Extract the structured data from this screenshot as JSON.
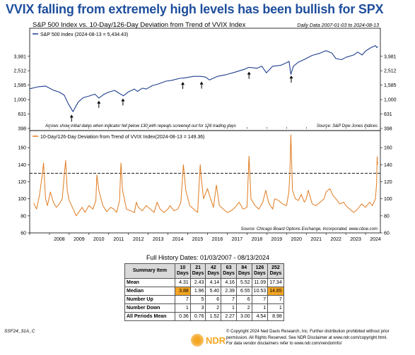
{
  "headline": "VVIX falling from extremely high levels has been bullish for SPX",
  "chart_data": [
    {
      "type": "line",
      "title": "S&P 500 Index vs. 10-Day/126-Day Deviation from Trend of VVIX Index",
      "subtitle": "Daily Data 2007-01-03 to 2024-08-13",
      "scale": "log",
      "ylim": [
        398,
        6500
      ],
      "yticks": [
        398,
        631,
        1000,
        1585,
        2512,
        3981
      ],
      "ytick_labels": [
        "398",
        "631",
        "1,000",
        "1,585",
        "2,512",
        "3,981"
      ],
      "series": [
        {
          "name": "S&P 500 Index (2024-08-13 = 5,434.43)",
          "color": "#1f3f8f",
          "x": [
            2007.0,
            2007.4,
            2007.8,
            2008.2,
            2008.5,
            2008.75,
            2008.95,
            2009.19,
            2009.45,
            2009.7,
            2010.0,
            2010.3,
            2010.5,
            2010.75,
            2011.0,
            2011.3,
            2011.6,
            2011.75,
            2012.0,
            2012.3,
            2012.45,
            2012.7,
            2012.9,
            2013.2,
            2013.5,
            2013.9,
            2014.2,
            2014.6,
            2014.85,
            2015.3,
            2015.65,
            2015.9,
            2016.1,
            2016.5,
            2016.9,
            2017.4,
            2017.9,
            2018.1,
            2018.5,
            2018.75,
            2018.98,
            2019.3,
            2019.7,
            2020.0,
            2020.13,
            2020.22,
            2020.35,
            2020.6,
            2020.9,
            2021.3,
            2021.7,
            2021.99,
            2022.3,
            2022.5,
            2022.78,
            2023.0,
            2023.4,
            2023.6,
            2023.83,
            2024.0,
            2024.25,
            2024.5,
            2024.58,
            2024.61
          ],
          "values": [
            1410,
            1500,
            1540,
            1350,
            1270,
            1150,
            880,
            680,
            920,
            1060,
            1120,
            1190,
            1050,
            1180,
            1270,
            1340,
            1190,
            1130,
            1280,
            1400,
            1300,
            1440,
            1400,
            1560,
            1640,
            1800,
            1850,
            1970,
            2000,
            2100,
            2100,
            2050,
            1870,
            2100,
            2200,
            2400,
            2650,
            2800,
            2720,
            2900,
            2350,
            2900,
            2980,
            3240,
            3380,
            2240,
            2900,
            3300,
            3600,
            4100,
            4400,
            4770,
            4400,
            3700,
            3580,
            3850,
            4150,
            4550,
            4150,
            4700,
            5200,
            5600,
            5250,
            5434
          ]
        }
      ],
      "annotations": [
        {
          "x": 2009.12,
          "y": 660
        },
        {
          "x": 2010.5,
          "y": 1030
        },
        {
          "x": 2011.72,
          "y": 1110
        },
        {
          "x": 2014.75,
          "y": 1880
        },
        {
          "x": 2015.7,
          "y": 1900
        },
        {
          "x": 2018.1,
          "y": 2600
        },
        {
          "x": 2020.24,
          "y": 2300
        }
      ],
      "note": "Arrows show initial dates when indicator fell below 130 with repeats screened out for 126 trading days",
      "source": "Source:  S&P Dow Jones Indices"
    },
    {
      "type": "line",
      "ylim": [
        60,
        180
      ],
      "yticks": [
        60,
        80,
        100,
        120,
        140,
        160
      ],
      "threshold": 130,
      "series": [
        {
          "name": "10-Day/126-Day Deviation from Trend of VVIX Index(2024-08-13 = 149.36)",
          "color": "#e07b1f",
          "x": [
            2007.2,
            2007.35,
            2007.5,
            2007.62,
            2007.7,
            2007.8,
            2007.9,
            2008.05,
            2008.2,
            2008.35,
            2008.5,
            2008.65,
            2008.75,
            2008.82,
            2008.9,
            2009.0,
            2009.2,
            2009.35,
            2009.5,
            2009.65,
            2009.8,
            2010.0,
            2010.2,
            2010.35,
            2010.4,
            2010.5,
            2010.7,
            2010.9,
            2011.1,
            2011.25,
            2011.4,
            2011.55,
            2011.62,
            2011.7,
            2011.9,
            2012.1,
            2012.3,
            2012.4,
            2012.5,
            2012.7,
            2012.9,
            2013.1,
            2013.3,
            2013.45,
            2013.6,
            2013.8,
            2014.0,
            2014.1,
            2014.3,
            2014.5,
            2014.65,
            2014.78,
            2014.9,
            2015.1,
            2015.3,
            2015.5,
            2015.63,
            2015.68,
            2015.8,
            2016.0,
            2016.1,
            2016.3,
            2016.45,
            2016.6,
            2016.8,
            2017.0,
            2017.2,
            2017.4,
            2017.6,
            2017.8,
            2018.0,
            2018.05,
            2018.1,
            2018.2,
            2018.4,
            2018.6,
            2018.8,
            2018.95,
            2019.1,
            2019.3,
            2019.4,
            2019.6,
            2019.8,
            2020.0,
            2020.12,
            2020.17,
            2020.22,
            2020.3,
            2020.45,
            2020.6,
            2020.75,
            2020.9,
            2021.0,
            2021.1,
            2021.3,
            2021.5,
            2021.7,
            2021.9,
            2022.0,
            2022.2,
            2022.35,
            2022.5,
            2022.7,
            2022.9,
            2023.0,
            2023.2,
            2023.4,
            2023.6,
            2023.8,
            2024.0,
            2024.2,
            2024.35,
            2024.5,
            2024.56,
            2024.59,
            2024.61
          ],
          "values": [
            95,
            88,
            105,
            125,
            142,
            100,
            92,
            108,
            96,
            90,
            94,
            100,
            128,
            145,
            110,
            98,
            88,
            80,
            85,
            90,
            84,
            92,
            88,
            98,
            128,
            110,
            92,
            85,
            90,
            88,
            84,
            98,
            142,
            110,
            88,
            86,
            84,
            96,
            90,
            86,
            92,
            88,
            84,
            96,
            88,
            84,
            88,
            92,
            86,
            88,
            96,
            140,
            110,
            92,
            88,
            84,
            140,
            125,
            100,
            112,
            104,
            90,
            116,
            92,
            88,
            84,
            86,
            90,
            96,
            88,
            90,
            120,
            150,
            100,
            92,
            88,
            96,
            110,
            95,
            88,
            100,
            98,
            94,
            92,
            108,
            130,
            175,
            110,
            100,
            98,
            105,
            96,
            100,
            110,
            94,
            92,
            96,
            100,
            108,
            112,
            104,
            100,
            94,
            96,
            92,
            88,
            84,
            88,
            94,
            90,
            96,
            92,
            100,
            118,
            149.36,
            140
          ]
        }
      ],
      "source": "Source:  Chicago Board Options Exchange, Incorporated. www.cboe.com"
    }
  ],
  "x_axis": {
    "range": [
      2007.0,
      2024.75
    ],
    "year_labels": [
      "2008",
      "2009",
      "2010",
      "2011",
      "2012",
      "2013",
      "2014",
      "2015",
      "2016",
      "2017",
      "2018",
      "2019",
      "2020",
      "2021",
      "2022",
      "2023",
      "2024"
    ]
  },
  "stats": {
    "title": "Full History Dates: 01/03/2007 - 08/13/2024",
    "corner_header": "Summary Item",
    "columns": [
      {
        "n": "10",
        "unit": "Days"
      },
      {
        "n": "21",
        "unit": "Days"
      },
      {
        "n": "42",
        "unit": "Days"
      },
      {
        "n": "63",
        "unit": "Days"
      },
      {
        "n": "84",
        "unit": "Days"
      },
      {
        "n": "126",
        "unit": "Days"
      },
      {
        "n": "252",
        "unit": "Days"
      }
    ],
    "rows": [
      {
        "label": "Mean",
        "values": [
          "4.31",
          "2.43",
          "4.14",
          "4.16",
          "5.52",
          "11.09",
          "17.34"
        ],
        "highlight": []
      },
      {
        "label": "Median",
        "values": [
          "3.88",
          "1.96",
          "5.40",
          "2.39",
          "6.55",
          "10.53",
          "14.85"
        ],
        "highlight": [
          0,
          6
        ]
      },
      {
        "label": "Number Up",
        "values": [
          "7",
          "5",
          "6",
          "7",
          "6",
          "7",
          "7"
        ],
        "highlight": []
      },
      {
        "label": "Number Down",
        "values": [
          "1",
          "3",
          "2",
          "1",
          "2",
          "1",
          "1"
        ],
        "highlight": []
      },
      {
        "label": "All Periods Mean",
        "values": [
          "0.36",
          "0.76",
          "1.52",
          "2.27",
          "3.00",
          "4.54",
          "8.98"
        ],
        "highlight": []
      }
    ],
    "highlight_color": "#f5a623"
  },
  "footer": {
    "code": "SSF24_31A_C",
    "brand": "NDR",
    "copyright_lines": [
      "© Copyright 2024 Ned Davis Research, Inc. Further distribution prohibited without prior",
      "permission. All Rights Reserved. See NDR Disclaimer at www.ndr.com/copyright.html.",
      "For data vendor disclaimers refer to www.ndr.com/vendorinfo/"
    ]
  },
  "colors": {
    "headline": "#1f4e9c",
    "spx_line": "#1f3f8f",
    "vvix_line": "#e07b1f",
    "panel_border": "#000000"
  }
}
